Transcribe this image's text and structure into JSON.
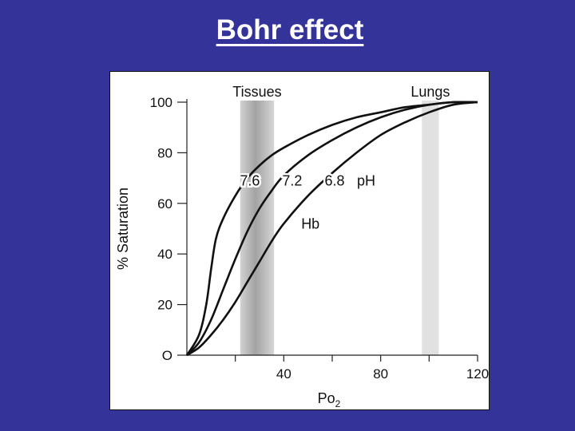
{
  "slide": {
    "title": "Bohr effect",
    "background_color": "#333399"
  },
  "chart_data": {
    "type": "line",
    "title": "",
    "xlabel": "PO2",
    "xlabel_main": "Po",
    "xlabel_sub": "2",
    "ylabel": "% Saturation",
    "xlim": [
      0,
      120
    ],
    "ylim": [
      0,
      100
    ],
    "x_ticks": [
      40,
      80,
      120
    ],
    "y_ticks": [
      0,
      20,
      40,
      60,
      80,
      100
    ],
    "y_tick_labels": [
      "O",
      "20",
      "40",
      "60",
      "80",
      "100"
    ],
    "grid": false,
    "bands": [
      {
        "label": "Tissues",
        "x_range": [
          22,
          36
        ],
        "style": "gradient-gray"
      },
      {
        "label": "Lungs",
        "x_range": [
          97,
          104
        ],
        "style": "light-gray"
      }
    ],
    "series": [
      {
        "name": "7.6",
        "x": [
          0,
          5,
          8,
          10,
          12,
          15,
          20,
          25,
          30,
          35,
          40,
          50,
          60,
          70,
          80,
          90,
          100,
          110,
          120
        ],
        "values": [
          0,
          8,
          20,
          34,
          46,
          54,
          63,
          70,
          75,
          79,
          82,
          87,
          91,
          94,
          96,
          98,
          99,
          100,
          100
        ]
      },
      {
        "name": "7.2",
        "x": [
          0,
          5,
          10,
          15,
          20,
          25,
          30,
          35,
          40,
          50,
          60,
          70,
          80,
          90,
          100,
          110,
          120
        ],
        "values": [
          0,
          5,
          14,
          26,
          38,
          49,
          58,
          65,
          71,
          79,
          85,
          90,
          94,
          97,
          99,
          100,
          100
        ]
      },
      {
        "name": "6.8",
        "x": [
          0,
          5,
          10,
          15,
          20,
          25,
          30,
          35,
          40,
          50,
          60,
          70,
          80,
          90,
          100,
          110,
          120
        ],
        "values": [
          0,
          3,
          8,
          14,
          21,
          29,
          37,
          45,
          52,
          63,
          72,
          80,
          87,
          92,
          96,
          99,
          100
        ]
      }
    ],
    "annotations": [
      {
        "text": "7.6",
        "series": "7.6"
      },
      {
        "text": "7.2",
        "series": "7.2"
      },
      {
        "text": "6.8",
        "series": "6.8"
      },
      {
        "text": "pH"
      },
      {
        "text": "Hb"
      }
    ]
  }
}
